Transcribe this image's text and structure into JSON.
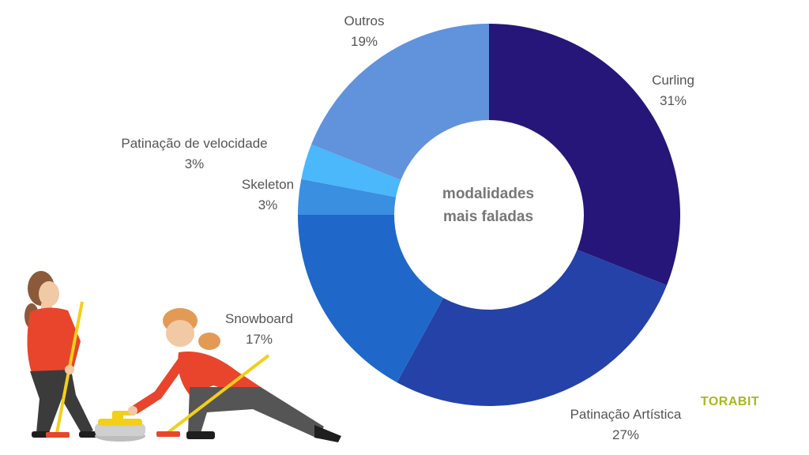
{
  "chart_data": {
    "type": "pie",
    "variant": "donut",
    "center_label": [
      "modalidades",
      "mais faladas"
    ],
    "slices": [
      {
        "label": "Curling",
        "value": 31,
        "value_label": "31%",
        "color": "#261679"
      },
      {
        "label": "Patinação Artística",
        "value": 27,
        "value_label": "27%",
        "color": "#2442a8"
      },
      {
        "label": "Snowboard",
        "value": 17,
        "value_label": "17%",
        "color": "#1f68c9"
      },
      {
        "label": "Skeleton",
        "value": 3,
        "value_label": "3%",
        "color": "#3a8fe0"
      },
      {
        "label": "Patinação de velocidade",
        "value": 3,
        "value_label": "3%",
        "color": "#4ab8fb"
      },
      {
        "label": "Outros",
        "value": 19,
        "value_label": "19%",
        "color": "#6193dc"
      }
    ]
  },
  "logo_text": "TORABIT"
}
